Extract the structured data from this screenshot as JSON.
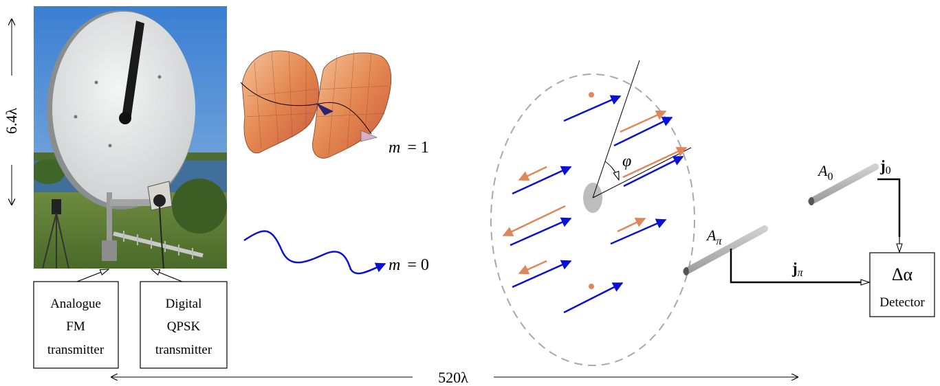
{
  "dimension_height": "6.4λ",
  "dimension_width": "520λ",
  "transmitters": [
    {
      "lines": [
        "Analogue",
        "FM",
        "transmitter"
      ]
    },
    {
      "lines": [
        "Digital",
        "QPSK",
        "transmitter"
      ]
    }
  ],
  "modes": [
    {
      "m": "m",
      "eq": "= 1"
    },
    {
      "m": "m",
      "eq": "= 0"
    }
  ],
  "angle_label": "φ",
  "antennas": {
    "a_pi": {
      "base": "A",
      "sub": "π"
    },
    "a_zero": {
      "base": "A",
      "sub": "0"
    }
  },
  "currents": {
    "j_pi": {
      "base": "j",
      "sub": "π"
    },
    "j_zero": {
      "base": "j",
      "sub": "0"
    }
  },
  "detector": {
    "symbol": "Δα",
    "label": "Detector"
  },
  "colors": {
    "blue_arrow": "#0a10d8",
    "orange_arrow": "#e0875a",
    "dish": "#e4e6e6",
    "sky": "#4a86cc",
    "grass": "#5f7e3a",
    "antenna_rod": "#b8b8b8",
    "dashed_ellipse": "#a8a8a8",
    "surface_orange": "#e6995c"
  }
}
